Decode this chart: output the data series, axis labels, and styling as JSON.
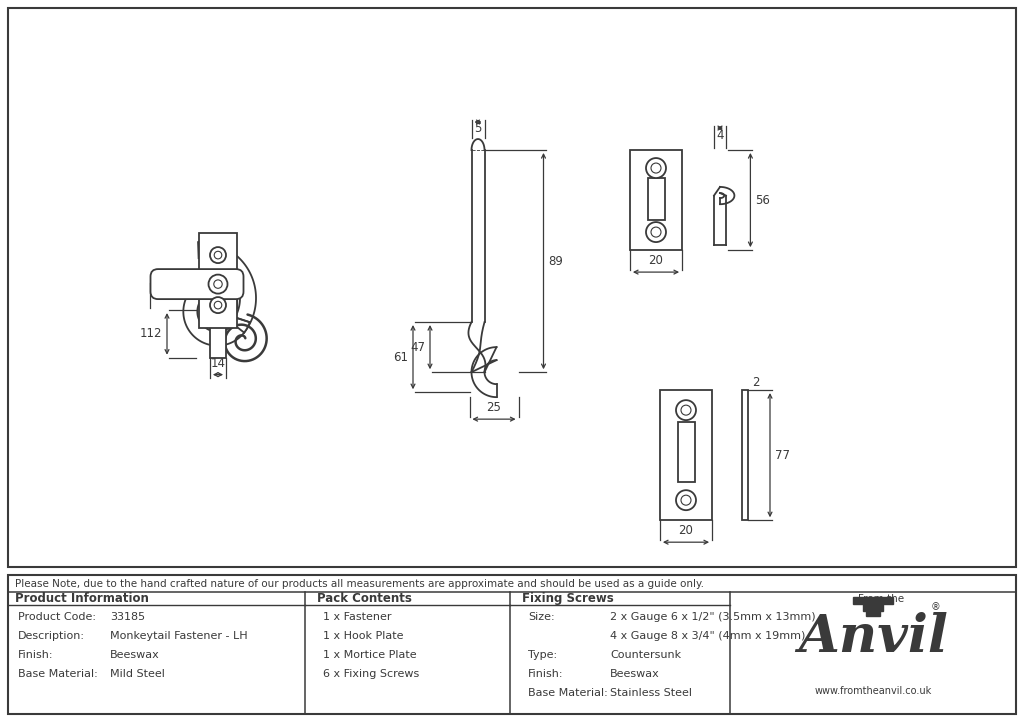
{
  "note_text": "Please Note, due to the hand crafted nature of our products all measurements are approximate and should be used as a guide only.",
  "product_code": "33185",
  "description": "Monkeytail Fastener - LH",
  "finish": "Beeswax",
  "base_material": "Mild Steel",
  "pack_contents": [
    "1 x Fastener",
    "1 x Hook Plate",
    "1 x Mortice Plate",
    "6 x Fixing Screws"
  ],
  "size_line1": "2 x Gauge 6 x 1/2\" (3.5mm x 13mm)",
  "size_line2": "4 x Gauge 8 x 3/4\" (4mm x 19mm)",
  "screw_type": "Countersunk",
  "screw_finish": "Beeswax",
  "screw_base": "Stainless Steel",
  "line_color": "#3a3a3a",
  "bg_color": "#ffffff",
  "div1": 305,
  "div2": 510,
  "div3": 730
}
